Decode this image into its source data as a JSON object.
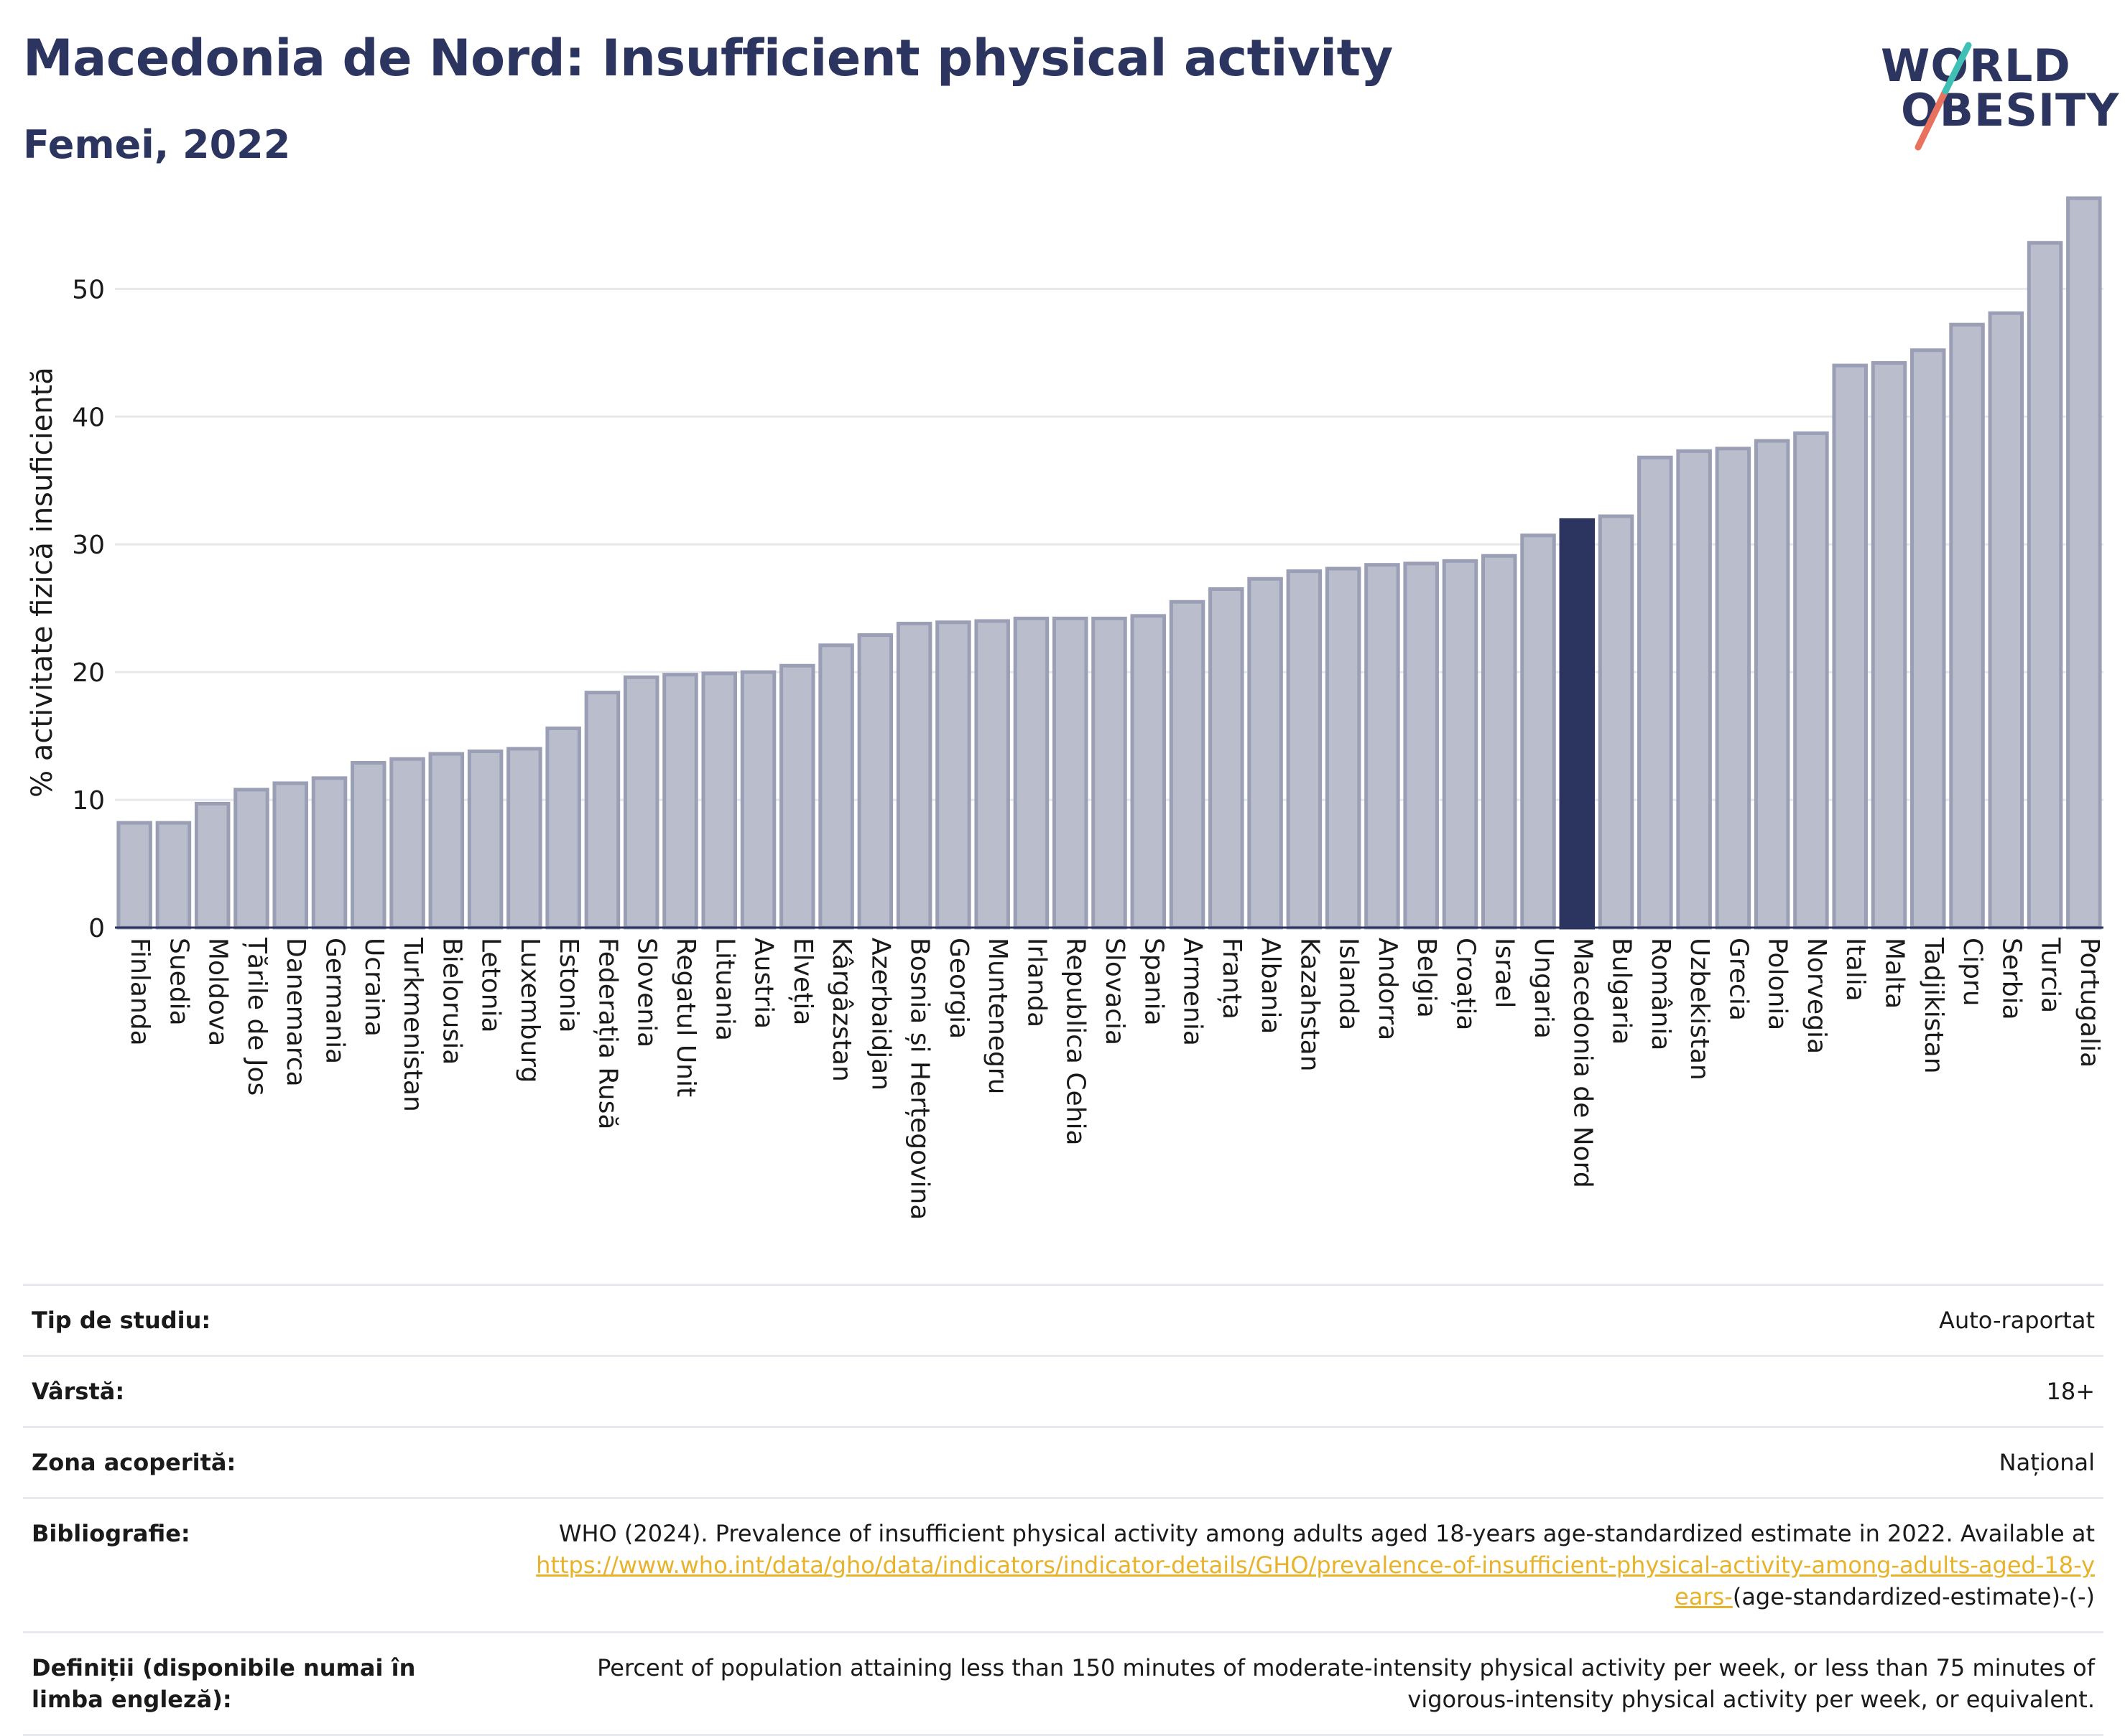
{
  "header": {
    "title": "Macedonia de Nord: Insufficient physical activity",
    "subtitle": "Femei, 2022",
    "logo_line1": "WORLD",
    "logo_line2": "OBESITY"
  },
  "colors": {
    "bar": "#b9bdcc",
    "bar_border": "#9a9fb5",
    "highlight": "#2b3560",
    "text": "#1a1a1a",
    "grid": "#e6e8ec",
    "logo_teal": "#3fbfb5",
    "logo_red": "#e8725e"
  },
  "chart_data": {
    "type": "bar",
    "title": "Macedonia de Nord: Insufficient physical activity",
    "subtitle": "Femei, 2022",
    "ylabel": "% activitate fizică insuficientă",
    "xlabel": "",
    "ylim": [
      0,
      58
    ],
    "yticks": [
      0,
      10,
      20,
      30,
      40,
      50
    ],
    "grid": true,
    "highlight_category": "Macedonia de Nord",
    "categories": [
      "Finlanda",
      "Suedia",
      "Moldova",
      "Țările de Jos",
      "Danemarca",
      "Germania",
      "Ucraina",
      "Turkmenistan",
      "Bielorusia",
      "Letonia",
      "Luxemburg",
      "Estonia",
      "Federația Rusă",
      "Slovenia",
      "Regatul Unit",
      "Lituania",
      "Austria",
      "Elveția",
      "Kârgâzstan",
      "Azerbaidjan",
      "Bosnia și Herțegovina",
      "Georgia",
      "Muntenegru",
      "Irlanda",
      "Republica Cehia",
      "Slovacia",
      "Spania",
      "Armenia",
      "Franța",
      "Albania",
      "Kazahstan",
      "Islanda",
      "Andorra",
      "Belgia",
      "Croația",
      "Israel",
      "Ungaria",
      "Macedonia de Nord",
      "Bulgaria",
      "România",
      "Uzbekistan",
      "Grecia",
      "Polonia",
      "Norvegia",
      "Italia",
      "Malta",
      "Tadjikistan",
      "Cipru",
      "Serbia",
      "Turcia",
      "Portugalia"
    ],
    "values": [
      8.2,
      8.2,
      9.7,
      10.8,
      11.3,
      11.7,
      12.9,
      13.2,
      13.6,
      13.8,
      14.0,
      15.6,
      18.4,
      19.6,
      19.8,
      19.9,
      20.0,
      20.5,
      22.1,
      22.9,
      23.8,
      23.9,
      24.0,
      24.2,
      24.2,
      24.2,
      24.4,
      25.5,
      26.5,
      27.3,
      27.9,
      28.1,
      28.4,
      28.5,
      28.7,
      29.1,
      30.7,
      31.9,
      32.2,
      36.8,
      37.3,
      37.5,
      38.1,
      38.7,
      44.0,
      44.2,
      45.2,
      47.2,
      48.1,
      53.6,
      57.1
    ]
  },
  "info": {
    "study_type_label": "Tip de studiu:",
    "study_type_value": "Auto-raportat",
    "age_label": "Vârstă:",
    "age_value": "18+",
    "area_label": "Zona acoperită:",
    "area_value": "Național",
    "bib_label": "Bibliografie:",
    "bib_text": "WHO (2024). Prevalence of insufficient physical activity among adults aged 18-years age-standardized estimate in 2022. Available at",
    "bib_link": "https://www.who.int/data/gho/data/indicators/indicator-details/GHO/prevalence-of-insufficient-physical-activity-among-adults-aged-18-years-",
    "bib_suffix": "(age-standardized-estimate)-(-)",
    "def_label": "Definiții (disponibile numai în limba engleză):",
    "def_value": "Percent of population attaining less than 150 minutes of moderate-intensity physical activity per week, or less than 75 minutes of vigorous-intensity physical activity per week, or equivalent."
  }
}
